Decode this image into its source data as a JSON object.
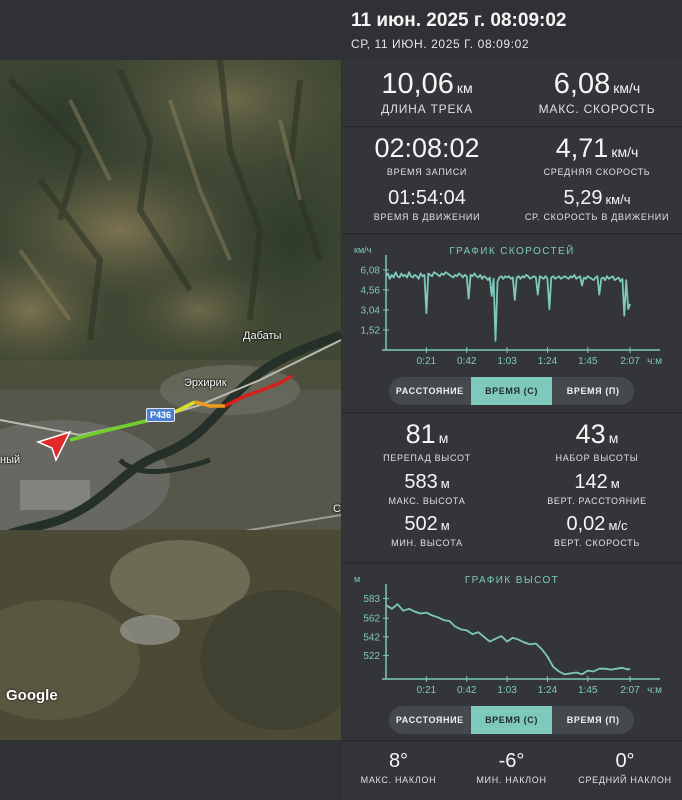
{
  "header": {
    "title": "11 июн. 2025 г. 08:09:02",
    "subtitle": "СР, 11 ИЮН. 2025 Г. 08:09:02"
  },
  "map": {
    "labels": {
      "dabaty": "Дабаты",
      "erkhirik": "Эрхирик",
      "left_edge": "ный",
      "right_edge": "С"
    },
    "road": "Р436",
    "google": "Google",
    "track_colors": [
      "#6fd02f",
      "#d9de2a",
      "#f09a1f",
      "#d62020"
    ]
  },
  "summary": {
    "distance": {
      "value": "10,06",
      "unit": "км",
      "label": "ДЛИНА ТРЕКА"
    },
    "max_speed": {
      "value": "6,08",
      "unit": "км/ч",
      "label": "МАКС. СКОРОСТЬ"
    }
  },
  "timing": {
    "record_time": {
      "value": "02:08:02",
      "unit": "",
      "label": "ВРЕМЯ ЗАПИСИ"
    },
    "avg_speed": {
      "value": "4,71",
      "unit": "км/ч",
      "label": "СРЕДНЯЯ СКОРОСТЬ"
    },
    "moving_time": {
      "value": "01:54:04",
      "unit": "",
      "label": "ВРЕМЯ В ДВИЖЕНИИ"
    },
    "avg_moving_speed": {
      "value": "5,29",
      "unit": "км/ч",
      "label": "СР. СКОРОСТЬ В ДВИЖЕНИИ"
    }
  },
  "toggle_speed": {
    "options": [
      "РАССТОЯНИЕ",
      "ВРЕМЯ (С)",
      "ВРЕМЯ (П)"
    ],
    "active": 1
  },
  "elevation_stats": {
    "diff": {
      "value": "81",
      "unit": "м",
      "label": "ПЕРЕПАД ВЫСОТ"
    },
    "gain": {
      "value": "43",
      "unit": "м",
      "label": "НАБОР ВЫСОТЫ"
    },
    "max": {
      "value": "583",
      "unit": "м",
      "label": "МАКС. ВЫСОТА"
    },
    "vert_dist": {
      "value": "142",
      "unit": "м",
      "label": "ВЕРТ. РАССТОЯНИЕ"
    },
    "min": {
      "value": "502",
      "unit": "м",
      "label": "МИН. ВЫСОТА"
    },
    "vert_speed": {
      "value": "0,02",
      "unit": "м/с",
      "label": "ВЕРТ. СКОРОСТЬ"
    }
  },
  "toggle_elev": {
    "options": [
      "РАССТОЯНИЕ",
      "ВРЕМЯ (С)",
      "ВРЕМЯ (П)"
    ],
    "active": 1
  },
  "slope": {
    "max": {
      "value": "8°",
      "label": "МАКС. НАКЛОН"
    },
    "min": {
      "value": "-6°",
      "label": "МИН. НАКЛОН"
    },
    "avg": {
      "value": "0°",
      "label": "СРЕДНИЙ НАКЛОН"
    }
  },
  "chart_data": [
    {
      "type": "line",
      "title": "ГРАФИК СКОРОСТЕЙ",
      "ylabel": "км/ч",
      "xlabel": "ч:м",
      "yticks": [
        "6,08",
        "4,56",
        "3,04",
        "1,52"
      ],
      "ytick_values": [
        6.08,
        4.56,
        3.04,
        1.52
      ],
      "xticks": [
        "0:21",
        "0:42",
        "1:03",
        "1:24",
        "1:45",
        "2:07"
      ],
      "xtick_values": [
        21,
        42,
        63,
        84,
        105,
        127
      ],
      "xlim": [
        0,
        128
      ],
      "ylim": [
        0,
        6.6
      ],
      "color": "#7ec9bc",
      "x": [
        0,
        1,
        2,
        3,
        4,
        5,
        6,
        7,
        8,
        9,
        10,
        11,
        12,
        13,
        14,
        15,
        16,
        17,
        18,
        19,
        20,
        21,
        22,
        23,
        24,
        25,
        26,
        27,
        28,
        29,
        30,
        31,
        32,
        33,
        34,
        35,
        36,
        37,
        38,
        39,
        40,
        41,
        42,
        43,
        44,
        45,
        46,
        47,
        48,
        49,
        50,
        51,
        52,
        53,
        54,
        55,
        56,
        57,
        58,
        59,
        60,
        61,
        62,
        63,
        64,
        65,
        66,
        67,
        68,
        69,
        70,
        71,
        72,
        73,
        74,
        75,
        76,
        77,
        78,
        79,
        80,
        81,
        82,
        83,
        84,
        85,
        86,
        87,
        88,
        89,
        90,
        91,
        92,
        93,
        94,
        95,
        96,
        97,
        98,
        99,
        100,
        101,
        102,
        103,
        104,
        105,
        106,
        107,
        108,
        109,
        110,
        111,
        112,
        113,
        114,
        115,
        116,
        117,
        118,
        119,
        120,
        121,
        122,
        123,
        124,
        125,
        126,
        127
      ],
      "values": [
        5.6,
        5.8,
        5.4,
        5.7,
        5.5,
        5.9,
        5.6,
        5.5,
        5.8,
        5.6,
        5.7,
        5.5,
        5.9,
        5.6,
        5.5,
        5.7,
        5.6,
        5.4,
        5.8,
        5.6,
        5.7,
        2.8,
        5.8,
        5.7,
        5.6,
        5.9,
        5.8,
        5.7,
        5.6,
        5.8,
        5.7,
        5.9,
        5.8,
        5.7,
        5.6,
        5.5,
        5.7,
        5.6,
        5.8,
        5.7,
        5.5,
        5.7,
        5.6,
        3.9,
        5.7,
        5.6,
        5.8,
        5.6,
        5.5,
        5.7,
        5.4,
        5.6,
        5.5,
        5.3,
        5.5,
        4.1,
        5.4,
        0.7,
        5.2,
        5.5,
        5.6,
        5.4,
        5.6,
        5.5,
        5.6,
        5.4,
        5.5,
        3.8,
        5.5,
        5.6,
        5.4,
        5.6,
        5.5,
        5.7,
        5.6,
        5.4,
        5.5,
        5.6,
        5.5,
        4.2,
        5.6,
        5.5,
        5.4,
        5.6,
        5.4,
        3.1,
        5.5,
        5.6,
        5.4,
        5.5,
        5.6,
        5.4,
        5.5,
        5.6,
        5.5,
        5.4,
        5.6,
        5.5,
        5.7,
        5.4,
        5.5,
        5.6,
        4.9,
        5.5,
        5.4,
        5.6,
        5.5,
        5.4,
        5.3,
        5.5,
        5.6,
        4.2,
        5.4,
        5.5,
        5.3,
        5.6,
        5.4,
        5.5,
        5.6,
        5.3,
        5.4,
        5.5,
        5.2,
        5.4,
        2.6,
        5.3,
        3.1,
        3.5
      ]
    },
    {
      "type": "line",
      "title": "ГРАФИК ВЫСОТ",
      "ylabel": "м",
      "xlabel": "ч:м",
      "yticks": [
        "583",
        "562",
        "542",
        "522"
      ],
      "ytick_values": [
        583,
        562,
        542,
        522
      ],
      "xticks": [
        "0:21",
        "0:42",
        "1:03",
        "1:24",
        "1:45",
        "2:07"
      ],
      "xtick_values": [
        21,
        42,
        63,
        84,
        105,
        127
      ],
      "xlim": [
        0,
        128
      ],
      "ylim": [
        497,
        590
      ],
      "color": "#7ec9bc",
      "x": [
        0,
        3,
        6,
        9,
        12,
        15,
        18,
        21,
        24,
        27,
        30,
        33,
        36,
        39,
        42,
        45,
        48,
        51,
        54,
        57,
        60,
        63,
        66,
        69,
        72,
        75,
        78,
        81,
        84,
        87,
        90,
        93,
        96,
        99,
        102,
        105,
        108,
        111,
        114,
        117,
        120,
        123,
        126,
        127
      ],
      "values": [
        576,
        572,
        577,
        570,
        572,
        569,
        567,
        568,
        565,
        563,
        560,
        559,
        553,
        550,
        549,
        545,
        547,
        542,
        537,
        540,
        543,
        537,
        541,
        539,
        536,
        534,
        535,
        529,
        521,
        510,
        505,
        502,
        503,
        504,
        502,
        506,
        505,
        508,
        508,
        507,
        508,
        509,
        507,
        508
      ]
    }
  ]
}
